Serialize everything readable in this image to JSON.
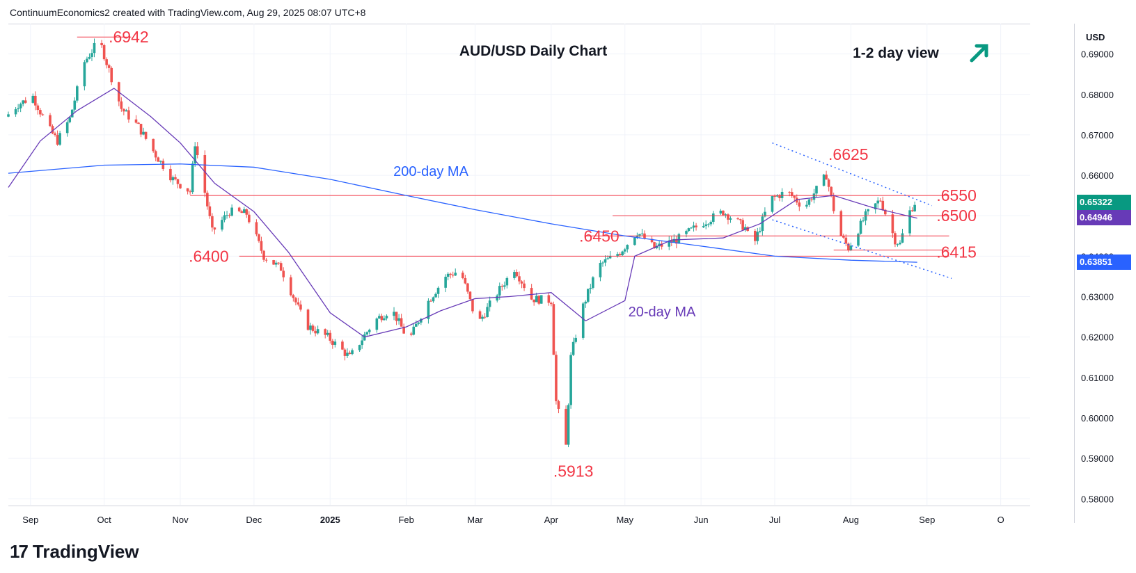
{
  "header": {
    "attribution": "ContinuumEconomics2 created with TradingView.com, Aug 29, 2025 08:07 UTC+8"
  },
  "footer": {
    "logo_mark": "17",
    "logo_text": "TradingView"
  },
  "colors": {
    "up": "#26a69a",
    "down": "#ef5350",
    "ma200": "#2962ff",
    "ma20": "#673ab7",
    "level": "#f23645",
    "arrow": "#089981"
  },
  "chart_data": {
    "type": "candlestick",
    "title": "AUD/USD Daily Chart",
    "view_text": "1-2 day view",
    "view_direction": "up",
    "currency": "USD",
    "ylim": [
      0.5785,
      0.6975
    ],
    "y_ticks": [
      0.69,
      0.68,
      0.67,
      0.66,
      0.65,
      0.64,
      0.63,
      0.62,
      0.61,
      0.6,
      0.59,
      0.58
    ],
    "y_tick_labels": [
      "0.69000",
      "0.68000",
      "0.67000",
      "0.66000",
      "0.65000",
      "0.64000",
      "0.63000",
      "0.62000",
      "0.61000",
      "0.60000",
      "0.59000",
      "0.58000"
    ],
    "x_labels": [
      "Sep",
      "Oct",
      "Nov",
      "Dec",
      "2025",
      "Feb",
      "Mar",
      "Apr",
      "May",
      "Jun",
      "Jul",
      "Aug",
      "Sep",
      "O"
    ],
    "x_start": "2024-08-23",
    "x_end": "2025-10-13",
    "x_label_dates": [
      "2024-09-01",
      "2024-10-01",
      "2024-11-01",
      "2024-12-01",
      "2025-01-01",
      "2025-02-01",
      "2025-03-01",
      "2025-04-01",
      "2025-05-01",
      "2025-06-01",
      "2025-07-01",
      "2025-08-01",
      "2025-09-01",
      "2025-10-01"
    ],
    "close_series": [
      [
        "2024-08-23",
        0.6745
      ],
      [
        "2024-08-28",
        0.6775
      ],
      [
        "2024-09-03",
        0.6795
      ],
      [
        "2024-09-09",
        0.672
      ],
      [
        "2024-09-13",
        0.6685
      ],
      [
        "2024-09-18",
        0.674
      ],
      [
        "2024-09-24",
        0.688
      ],
      [
        "2024-09-30",
        0.6935
      ],
      [
        "2024-10-04",
        0.686
      ],
      [
        "2024-10-09",
        0.6765
      ],
      [
        "2024-10-16",
        0.672
      ],
      [
        "2024-10-23",
        0.665
      ],
      [
        "2024-10-30",
        0.659
      ],
      [
        "2024-11-06",
        0.656
      ],
      [
        "2024-11-08",
        0.668
      ],
      [
        "2024-11-11",
        0.659
      ],
      [
        "2024-11-15",
        0.646
      ],
      [
        "2024-11-22",
        0.651
      ],
      [
        "2024-11-29",
        0.6505
      ],
      [
        "2024-12-06",
        0.64
      ],
      [
        "2024-12-13",
        0.637
      ],
      [
        "2024-12-18",
        0.63
      ],
      [
        "2024-12-23",
        0.623
      ],
      [
        "2025-01-01",
        0.62
      ],
      [
        "2025-01-10",
        0.615
      ],
      [
        "2025-01-20",
        0.624
      ],
      [
        "2025-01-27",
        0.627
      ],
      [
        "2025-02-03",
        0.619
      ],
      [
        "2025-02-10",
        0.628
      ],
      [
        "2025-02-18",
        0.635
      ],
      [
        "2025-02-24",
        0.6365
      ],
      [
        "2025-03-03",
        0.623
      ],
      [
        "2025-03-10",
        0.63
      ],
      [
        "2025-03-18",
        0.637
      ],
      [
        "2025-03-25",
        0.6295
      ],
      [
        "2025-04-02",
        0.629
      ],
      [
        "2025-04-04",
        0.604
      ],
      [
        "2025-04-08",
        0.593
      ],
      [
        "2025-04-10",
        0.615
      ],
      [
        "2025-04-14",
        0.626
      ],
      [
        "2025-04-21",
        0.6375
      ],
      [
        "2025-04-30",
        0.641
      ],
      [
        "2025-05-07",
        0.646
      ],
      [
        "2025-05-14",
        0.642
      ],
      [
        "2025-05-23",
        0.644
      ],
      [
        "2025-06-02",
        0.648
      ],
      [
        "2025-06-11",
        0.651
      ],
      [
        "2025-06-20",
        0.647
      ],
      [
        "2025-06-23",
        0.642
      ],
      [
        "2025-06-30",
        0.654
      ],
      [
        "2025-07-07",
        0.656
      ],
      [
        "2025-07-14",
        0.652
      ],
      [
        "2025-07-23",
        0.66
      ],
      [
        "2025-07-28",
        0.646
      ],
      [
        "2025-08-01",
        0.642
      ],
      [
        "2025-08-08",
        0.65
      ],
      [
        "2025-08-14",
        0.654
      ],
      [
        "2025-08-20",
        0.644
      ],
      [
        "2025-08-22",
        0.643
      ],
      [
        "2025-08-25",
        0.65
      ],
      [
        "2025-08-28",
        0.6532
      ]
    ],
    "ma200": [
      [
        "2024-08-23",
        0.6605
      ],
      [
        "2024-10-01",
        0.6625
      ],
      [
        "2024-11-01",
        0.6628
      ],
      [
        "2024-12-01",
        0.662
      ],
      [
        "2025-01-01",
        0.659
      ],
      [
        "2025-02-01",
        0.655
      ],
      [
        "2025-03-01",
        0.6515
      ],
      [
        "2025-04-01",
        0.648
      ],
      [
        "2025-05-01",
        0.645
      ],
      [
        "2025-06-01",
        0.6425
      ],
      [
        "2025-07-01",
        0.64
      ],
      [
        "2025-08-01",
        0.639
      ],
      [
        "2025-08-28",
        0.6385
      ]
    ],
    "ma20": [
      [
        "2024-08-23",
        0.657
      ],
      [
        "2024-09-05",
        0.6685
      ],
      [
        "2024-09-20",
        0.676
      ],
      [
        "2024-10-05",
        0.6815
      ],
      [
        "2024-10-20",
        0.6745
      ],
      [
        "2024-11-01",
        0.668
      ],
      [
        "2024-11-15",
        0.658
      ],
      [
        "2024-12-01",
        0.651
      ],
      [
        "2024-12-15",
        0.641
      ],
      [
        "2025-01-01",
        0.626
      ],
      [
        "2025-01-15",
        0.62
      ],
      [
        "2025-02-01",
        0.6225
      ],
      [
        "2025-02-15",
        0.6265
      ],
      [
        "2025-03-01",
        0.6295
      ],
      [
        "2025-03-15",
        0.63
      ],
      [
        "2025-04-01",
        0.631
      ],
      [
        "2025-04-15",
        0.624
      ],
      [
        "2025-05-01",
        0.629
      ],
      [
        "2025-05-05",
        0.64
      ],
      [
        "2025-05-20",
        0.644
      ],
      [
        "2025-06-10",
        0.6445
      ],
      [
        "2025-06-25",
        0.648
      ],
      [
        "2025-07-10",
        0.654
      ],
      [
        "2025-07-25",
        0.655
      ],
      [
        "2025-08-10",
        0.652
      ],
      [
        "2025-08-28",
        0.6494
      ]
    ],
    "level_lines": [
      {
        "label": ".6942",
        "value": 0.6942,
        "from": "2024-09-20",
        "to": "2024-10-12"
      },
      {
        "label": ".6625",
        "value": 0.6625,
        "from": null,
        "to": null
      },
      {
        "label": ".6550",
        "value": 0.655,
        "from": "2024-11-05",
        "to": "2025-09-10"
      },
      {
        "label": ".6500",
        "value": 0.65,
        "from": "2025-04-26",
        "to": "2025-09-10"
      },
      {
        "label": ".6450",
        "value": 0.645,
        "from": "2025-04-15",
        "to": "2025-09-10"
      },
      {
        "label": ".6415",
        "value": 0.6415,
        "from": "2025-07-25",
        "to": "2025-09-10"
      },
      {
        "label": ".6400",
        "value": 0.64,
        "from": "2024-11-25",
        "to": "2025-09-10"
      },
      {
        "label": ".5913",
        "value": 0.5913,
        "from": null,
        "to": null
      }
    ],
    "channel": {
      "upper": [
        [
          "2025-06-30",
          0.668
        ],
        [
          "2025-09-03",
          0.6525
        ]
      ],
      "lower": [
        [
          "2025-06-30",
          0.649
        ],
        [
          "2025-09-11",
          0.6345
        ]
      ]
    },
    "annotations": {
      "ma200_label": "200-day MA",
      "ma20_label": "20-day MA"
    },
    "current_labels": [
      {
        "text": "0.65322",
        "value": 0.65322,
        "color": "#089981"
      },
      {
        "text": "0.64946",
        "value": 0.64946,
        "color": "#673ab7"
      },
      {
        "text": "0.63851",
        "value": 0.63851,
        "color": "#2962ff"
      }
    ]
  }
}
